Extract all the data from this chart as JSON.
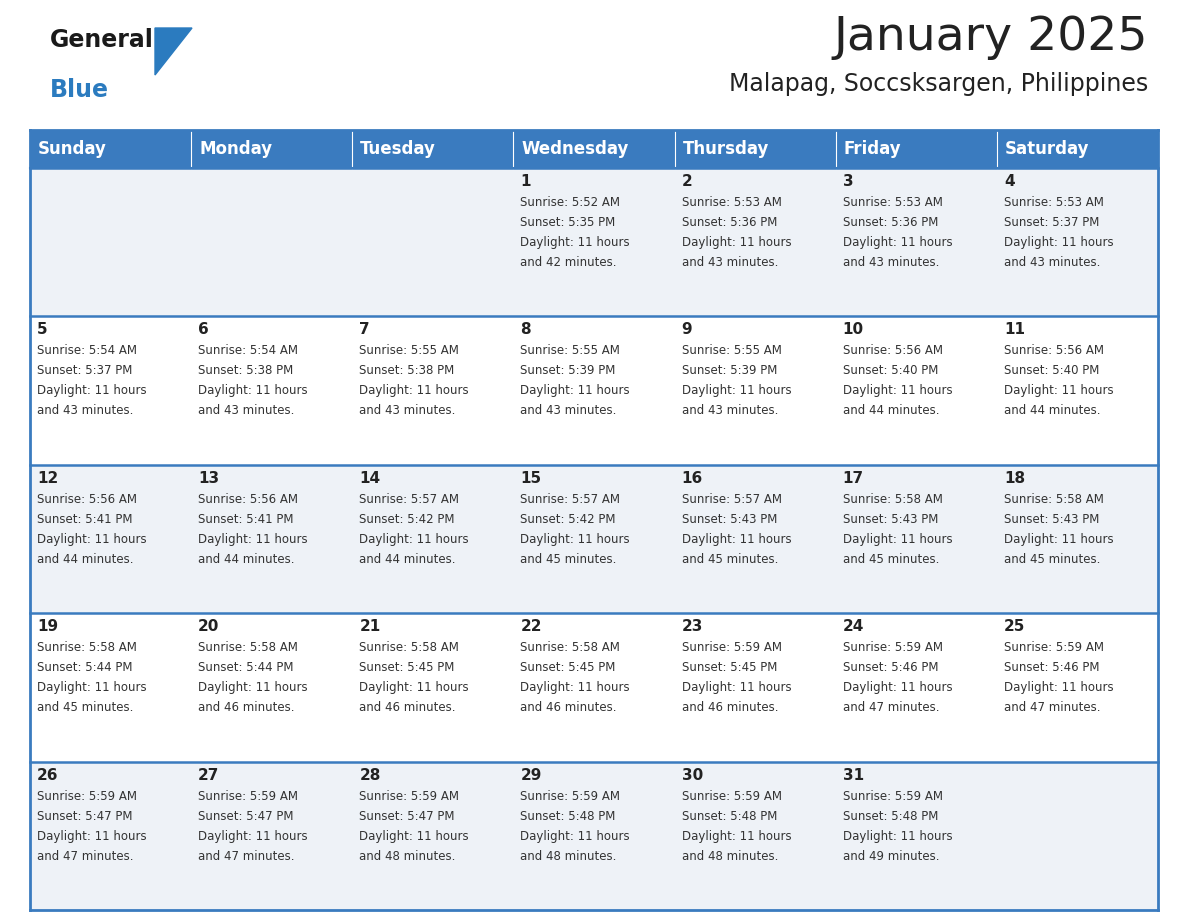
{
  "title": "January 2025",
  "subtitle": "Malapag, Soccsksargen, Philippines",
  "days_of_week": [
    "Sunday",
    "Monday",
    "Tuesday",
    "Wednesday",
    "Thursday",
    "Friday",
    "Saturday"
  ],
  "header_bg": "#3a7bbf",
  "header_text": "#ffffff",
  "row_bg_odd": "#eef2f7",
  "row_bg_even": "#ffffff",
  "border_color": "#3a7bbf",
  "day_num_color": "#222222",
  "cell_text_color": "#333333",
  "logo_general_color": "#1a1a1a",
  "logo_blue_color": "#2b7bbf",
  "calendar": [
    [
      null,
      null,
      null,
      {
        "day": 1,
        "sunrise": "5:52 AM",
        "sunset": "5:35 PM",
        "daylight": "11 hours and 42 minutes"
      },
      {
        "day": 2,
        "sunrise": "5:53 AM",
        "sunset": "5:36 PM",
        "daylight": "11 hours and 43 minutes"
      },
      {
        "day": 3,
        "sunrise": "5:53 AM",
        "sunset": "5:36 PM",
        "daylight": "11 hours and 43 minutes"
      },
      {
        "day": 4,
        "sunrise": "5:53 AM",
        "sunset": "5:37 PM",
        "daylight": "11 hours and 43 minutes"
      }
    ],
    [
      {
        "day": 5,
        "sunrise": "5:54 AM",
        "sunset": "5:37 PM",
        "daylight": "11 hours and 43 minutes"
      },
      {
        "day": 6,
        "sunrise": "5:54 AM",
        "sunset": "5:38 PM",
        "daylight": "11 hours and 43 minutes"
      },
      {
        "day": 7,
        "sunrise": "5:55 AM",
        "sunset": "5:38 PM",
        "daylight": "11 hours and 43 minutes"
      },
      {
        "day": 8,
        "sunrise": "5:55 AM",
        "sunset": "5:39 PM",
        "daylight": "11 hours and 43 minutes"
      },
      {
        "day": 9,
        "sunrise": "5:55 AM",
        "sunset": "5:39 PM",
        "daylight": "11 hours and 43 minutes"
      },
      {
        "day": 10,
        "sunrise": "5:56 AM",
        "sunset": "5:40 PM",
        "daylight": "11 hours and 44 minutes"
      },
      {
        "day": 11,
        "sunrise": "5:56 AM",
        "sunset": "5:40 PM",
        "daylight": "11 hours and 44 minutes"
      }
    ],
    [
      {
        "day": 12,
        "sunrise": "5:56 AM",
        "sunset": "5:41 PM",
        "daylight": "11 hours and 44 minutes"
      },
      {
        "day": 13,
        "sunrise": "5:56 AM",
        "sunset": "5:41 PM",
        "daylight": "11 hours and 44 minutes"
      },
      {
        "day": 14,
        "sunrise": "5:57 AM",
        "sunset": "5:42 PM",
        "daylight": "11 hours and 44 minutes"
      },
      {
        "day": 15,
        "sunrise": "5:57 AM",
        "sunset": "5:42 PM",
        "daylight": "11 hours and 45 minutes"
      },
      {
        "day": 16,
        "sunrise": "5:57 AM",
        "sunset": "5:43 PM",
        "daylight": "11 hours and 45 minutes"
      },
      {
        "day": 17,
        "sunrise": "5:58 AM",
        "sunset": "5:43 PM",
        "daylight": "11 hours and 45 minutes"
      },
      {
        "day": 18,
        "sunrise": "5:58 AM",
        "sunset": "5:43 PM",
        "daylight": "11 hours and 45 minutes"
      }
    ],
    [
      {
        "day": 19,
        "sunrise": "5:58 AM",
        "sunset": "5:44 PM",
        "daylight": "11 hours and 45 minutes"
      },
      {
        "day": 20,
        "sunrise": "5:58 AM",
        "sunset": "5:44 PM",
        "daylight": "11 hours and 46 minutes"
      },
      {
        "day": 21,
        "sunrise": "5:58 AM",
        "sunset": "5:45 PM",
        "daylight": "11 hours and 46 minutes"
      },
      {
        "day": 22,
        "sunrise": "5:58 AM",
        "sunset": "5:45 PM",
        "daylight": "11 hours and 46 minutes"
      },
      {
        "day": 23,
        "sunrise": "5:59 AM",
        "sunset": "5:45 PM",
        "daylight": "11 hours and 46 minutes"
      },
      {
        "day": 24,
        "sunrise": "5:59 AM",
        "sunset": "5:46 PM",
        "daylight": "11 hours and 47 minutes"
      },
      {
        "day": 25,
        "sunrise": "5:59 AM",
        "sunset": "5:46 PM",
        "daylight": "11 hours and 47 minutes"
      }
    ],
    [
      {
        "day": 26,
        "sunrise": "5:59 AM",
        "sunset": "5:47 PM",
        "daylight": "11 hours and 47 minutes"
      },
      {
        "day": 27,
        "sunrise": "5:59 AM",
        "sunset": "5:47 PM",
        "daylight": "11 hours and 47 minutes"
      },
      {
        "day": 28,
        "sunrise": "5:59 AM",
        "sunset": "5:47 PM",
        "daylight": "11 hours and 48 minutes"
      },
      {
        "day": 29,
        "sunrise": "5:59 AM",
        "sunset": "5:48 PM",
        "daylight": "11 hours and 48 minutes"
      },
      {
        "day": 30,
        "sunrise": "5:59 AM",
        "sunset": "5:48 PM",
        "daylight": "11 hours and 48 minutes"
      },
      {
        "day": 31,
        "sunrise": "5:59 AM",
        "sunset": "5:48 PM",
        "daylight": "11 hours and 49 minutes"
      },
      null
    ]
  ]
}
